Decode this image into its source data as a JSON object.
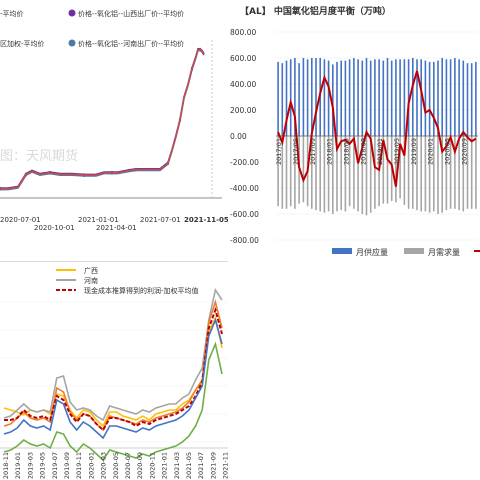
{
  "chart_data": [
    {
      "type": "line",
      "title": "",
      "legend_position": "top",
      "watermark": "图：天风期货",
      "legend": [
        {
          "name": "价格--氧化铝--山西出厂价--平均价",
          "color": "#7030a0",
          "marker": "circle"
        },
        {
          "name": "价格--氧化铝--河南出厂价--平均价",
          "color": "#4a7ba7",
          "marker": "circle"
        }
      ],
      "legend_fragments": [
        "-平均价",
        "区加权-平均价"
      ],
      "x_ticks_row1": [
        "2020-07-01",
        "2021-01-01",
        "2021-07-01"
      ],
      "x_ticks_row2": [
        "2020-10-01",
        "2021-04-01"
      ],
      "x_end_label": "2021-11-05",
      "series": [
        {
          "name": "价格--氧化铝--山西出厂价--平均价",
          "color": "#7030a0",
          "x": [
            0,
            8,
            18,
            26,
            32,
            40,
            50,
            60,
            72,
            84,
            96,
            104,
            112,
            118,
            126,
            136,
            150,
            160,
            168,
            172,
            176,
            180,
            184,
            188,
            192,
            196,
            198,
            200,
            202,
            204
          ],
          "y": [
            10,
            10,
            12,
            28,
            32,
            28,
            30,
            28,
            28,
            27,
            27,
            30,
            30,
            30,
            32,
            34,
            34,
            34,
            42,
            58,
            76,
            96,
            124,
            140,
            160,
            175,
            184,
            184,
            182,
            178
          ]
        },
        {
          "name": "价格--氧化铝--河南出厂价--平均价",
          "color": "#4a7ba7",
          "x": [
            0,
            8,
            18,
            26,
            32,
            40,
            50,
            60,
            72,
            84,
            96,
            104,
            112,
            118,
            126,
            136,
            150,
            160,
            168,
            172,
            176,
            180,
            184,
            188,
            192,
            196,
            198,
            200,
            202,
            204
          ],
          "y": [
            8,
            8,
            10,
            26,
            30,
            26,
            28,
            26,
            26,
            25,
            25,
            28,
            28,
            28,
            30,
            32,
            32,
            32,
            40,
            56,
            74,
            94,
            122,
            138,
            158,
            173,
            182,
            182,
            180,
            176
          ]
        },
        {
          "name": "区加权-平均价",
          "color": "#c0504d",
          "x": [
            0,
            8,
            18,
            26,
            32,
            40,
            50,
            60,
            72,
            84,
            96,
            104,
            112,
            118,
            126,
            136,
            150,
            160,
            168,
            172,
            176,
            180,
            184,
            188,
            192,
            196,
            198,
            200,
            202,
            204
          ],
          "y": [
            9,
            9,
            11,
            27,
            31,
            27,
            29,
            27,
            27,
            26,
            26,
            29,
            29,
            29,
            31,
            33,
            33,
            33,
            41,
            57,
            75,
            95,
            123,
            139,
            159,
            174,
            183,
            183,
            181,
            177
          ]
        }
      ]
    },
    {
      "type": "bar",
      "title": "【AL】 中国氧化铝月度平衡（万吨）",
      "y_ticks": [
        "800.00",
        "600.00",
        "400.00",
        "200.00",
        "0.00",
        "-200.00",
        "-400.00",
        "-600.00",
        "-800.00"
      ],
      "ylim": [
        -800,
        800
      ],
      "x_labels": [
        "2017/01",
        "2017/05",
        "2017/09",
        "2018/01",
        "2018/05",
        "2018/09",
        "2019/01",
        "2019/05",
        "2019/09",
        "2020/01",
        "2020/05",
        "2020/09"
      ],
      "legend": [
        {
          "name": "月供应量",
          "color": "#4472c4"
        },
        {
          "name": "月需求量",
          "color": "#a5a5a5"
        },
        {
          "name": "",
          "color": "#c00000"
        }
      ],
      "series": [
        {
          "name": "月供应量",
          "values": [
            570,
            560,
            580,
            590,
            600,
            560,
            600,
            590,
            600,
            600,
            600,
            590,
            580,
            550,
            570,
            580,
            580,
            590,
            600,
            590,
            580,
            600,
            580,
            590,
            590,
            580,
            600,
            580,
            590,
            590,
            590,
            590,
            600,
            590,
            590,
            580,
            570,
            570,
            580,
            600,
            590,
            590,
            600,
            590,
            580,
            560,
            560,
            570
          ]
        },
        {
          "name": "月需求量",
          "values": [
            -540,
            -560,
            -560,
            -540,
            -560,
            -520,
            -510,
            -540,
            -560,
            -570,
            -580,
            -590,
            -580,
            -600,
            -580,
            -570,
            -580,
            -540,
            -560,
            -580,
            -600,
            -610,
            -590,
            -560,
            -540,
            -520,
            -520,
            -500,
            -510,
            -480,
            -530,
            -560,
            -560,
            -570,
            -580,
            -580,
            -590,
            -580,
            -600,
            -590,
            -570,
            -560,
            -560,
            -570,
            -580,
            -560,
            -560,
            -560
          ]
        },
        {
          "name": "",
          "values": [
            30,
            -50,
            120,
            260,
            150,
            -240,
            -340,
            -270,
            20,
            180,
            330,
            450,
            380,
            220,
            -100,
            -40,
            -30,
            -60,
            -20,
            -210,
            -90,
            30,
            -20,
            -240,
            -260,
            -30,
            -180,
            -220,
            -390,
            -60,
            -150,
            250,
            390,
            500,
            350,
            180,
            200,
            140,
            60,
            -120,
            -80,
            -10,
            -120,
            -20,
            30,
            -10,
            -40,
            -20
          ]
        }
      ]
    },
    {
      "type": "line",
      "legend_position": "top",
      "legend": [
        {
          "name": "广西",
          "color": "#ffc000",
          "style": "solid"
        },
        {
          "name": "河南",
          "color": "#a5a5a5",
          "style": "solid"
        },
        {
          "name": "现金成本推算得到的利润-加权平均值",
          "color": "#c00000",
          "style": "dashed"
        }
      ],
      "x_labels": [
        "2018-11",
        "2019-01",
        "2019-03",
        "2019-05",
        "2019-07",
        "2019-09",
        "2019-11",
        "2020-01",
        "2020-03",
        "2020-05",
        "2020-07",
        "2020-09",
        "2020-11",
        "2021-01",
        "2021-03",
        "2021-05",
        "2021-07",
        "2021-09",
        "2021-11"
      ],
      "series": [
        {
          "name": "广西",
          "color": "#ffc000",
          "values": [
            32,
            30,
            28,
            25,
            30,
            28,
            30,
            26,
            46,
            44,
            30,
            22,
            30,
            28,
            20,
            14,
            28,
            28,
            24,
            22,
            20,
            24,
            20,
            26,
            28,
            30,
            30,
            36,
            40,
            50,
            58,
            108,
            122,
            92
          ]
        },
        {
          "name": "河南",
          "color": "#a5a5a5",
          "values": [
            22,
            24,
            30,
            36,
            30,
            28,
            30,
            28,
            62,
            64,
            38,
            30,
            32,
            30,
            24,
            20,
            34,
            32,
            30,
            28,
            26,
            30,
            28,
            32,
            34,
            36,
            36,
            42,
            46,
            60,
            72,
            120,
            150,
            140
          ]
        },
        {
          "name": "",
          "color": "#ed7d31",
          "values": [
            14,
            16,
            22,
            28,
            22,
            20,
            22,
            18,
            52,
            48,
            28,
            20,
            26,
            24,
            16,
            10,
            24,
            22,
            20,
            18,
            16,
            20,
            18,
            22,
            24,
            26,
            28,
            32,
            38,
            50,
            60,
            118,
            138,
            112
          ]
        },
        {
          "name": "现金成本推算得到的利润-加权平均值",
          "color": "#c00000",
          "values": [
            20,
            20,
            22,
            30,
            24,
            22,
            24,
            20,
            44,
            40,
            26,
            18,
            26,
            24,
            16,
            10,
            22,
            22,
            20,
            18,
            14,
            18,
            16,
            20,
            22,
            24,
            26,
            30,
            34,
            44,
            58,
            112,
            130,
            106
          ]
        },
        {
          "name": "",
          "color": "#70ad47",
          "values": [
            -12,
            -10,
            -6,
            0,
            -4,
            -6,
            -4,
            -8,
            8,
            6,
            -6,
            -12,
            -4,
            -8,
            -14,
            -20,
            -10,
            -12,
            -14,
            -16,
            -18,
            -14,
            -16,
            -12,
            -10,
            -8,
            -6,
            -2,
            4,
            14,
            30,
            80,
            96,
            66
          ]
        },
        {
          "name": "",
          "color": "#4472c4",
          "values": [
            6,
            8,
            12,
            20,
            14,
            12,
            14,
            10,
            40,
            36,
            18,
            10,
            18,
            14,
            8,
            2,
            14,
            14,
            12,
            10,
            8,
            12,
            10,
            14,
            16,
            18,
            20,
            24,
            30,
            42,
            54,
            104,
            120,
            96
          ]
        }
      ]
    }
  ]
}
